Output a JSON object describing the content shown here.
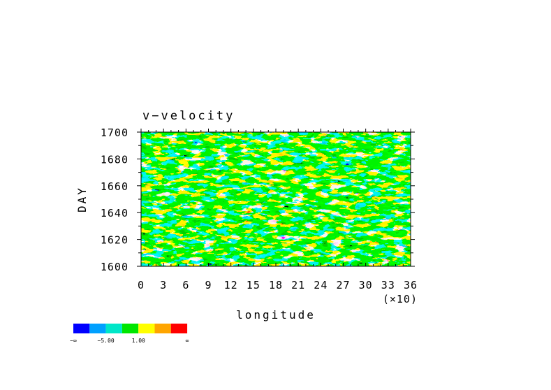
{
  "chart_data": {
    "type": "heatmap",
    "title": "v−velocity",
    "xlabel": "longitude",
    "ylabel": "DAY",
    "x_scale_note": "(×10)",
    "xlim": [
      0,
      360
    ],
    "ylim": [
      1600,
      1700
    ],
    "x_ticks": [
      "0",
      "3",
      "6",
      "9",
      "12",
      "15",
      "18",
      "21",
      "24",
      "27",
      "30",
      "33",
      "36"
    ],
    "y_ticks": [
      "1600",
      "1620",
      "1640",
      "1660",
      "1680",
      "1700"
    ],
    "colorbar": {
      "colors": [
        "#0000ff",
        "#00a0ff",
        "#00e6c8",
        "#00e600",
        "#ffff00",
        "#ffa500",
        "#ff0000"
      ],
      "labels": [
        "−∞",
        "−5.00",
        "1.00",
        "∞"
      ]
    }
  }
}
